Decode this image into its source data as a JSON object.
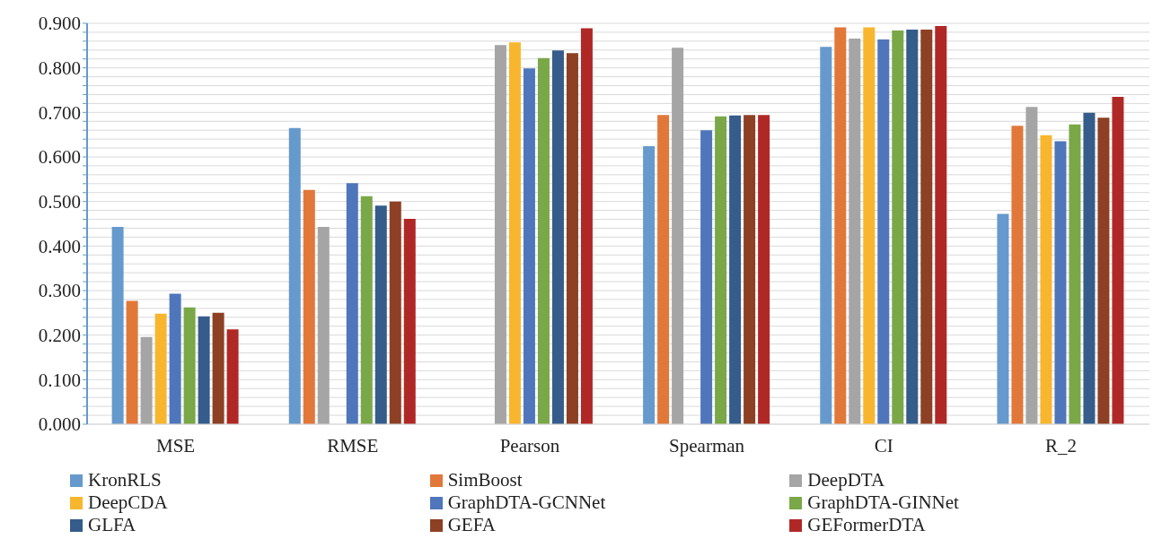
{
  "chart_data": {
    "type": "bar",
    "categories": [
      "MSE",
      "RMSE",
      "Pearson",
      "Spearman",
      "CI",
      "R_2"
    ],
    "series": [
      {
        "name": "KronRLS",
        "color": "#6699cc",
        "values": [
          0.443,
          0.665,
          null,
          0.624,
          0.847,
          0.472
        ]
      },
      {
        "name": "SimBoost",
        "color": "#e2773a",
        "values": [
          0.277,
          0.526,
          null,
          0.694,
          0.891,
          0.67
        ]
      },
      {
        "name": "DeepDTA",
        "color": "#a5a5a5",
        "values": [
          0.196,
          0.443,
          0.851,
          0.845,
          0.866,
          0.712
        ]
      },
      {
        "name": "DeepCDA",
        "color": "#f8b62f",
        "values": [
          0.248,
          null,
          0.857,
          null,
          0.891,
          0.649
        ]
      },
      {
        "name": "GraphDTA-GCNNet",
        "color": "#4f76bb",
        "values": [
          0.293,
          0.541,
          0.799,
          0.66,
          0.864,
          0.635
        ]
      },
      {
        "name": "GraphDTA-GINNet",
        "color": "#7aa747",
        "values": [
          0.262,
          0.512,
          0.822,
          0.691,
          0.884,
          0.673
        ]
      },
      {
        "name": "GLFA",
        "color": "#355c8a",
        "values": [
          0.242,
          0.491,
          0.839,
          0.693,
          0.886,
          0.699
        ]
      },
      {
        "name": "GEFA",
        "color": "#8d4023",
        "values": [
          0.25,
          0.5,
          0.833,
          0.694,
          0.886,
          0.688
        ]
      },
      {
        "name": "GEFormerDTA",
        "color": "#b02826",
        "values": [
          0.213,
          0.461,
          0.889,
          0.694,
          0.894,
          0.735
        ]
      }
    ],
    "ylim": [
      0,
      0.9
    ],
    "yticks": [
      {
        "value": 0,
        "label": "0.000"
      },
      {
        "value": 0.02,
        "label": null
      },
      {
        "value": 0.04,
        "label": null
      },
      {
        "value": 0.06,
        "label": null
      },
      {
        "value": 0.08,
        "label": null
      },
      {
        "value": 0.1,
        "label": "0.100"
      },
      {
        "value": 0.12,
        "label": null
      },
      {
        "value": 0.14,
        "label": null
      },
      {
        "value": 0.16,
        "label": null
      },
      {
        "value": 0.18,
        "label": null
      },
      {
        "value": 0.2,
        "label": "0.200"
      },
      {
        "value": 0.22,
        "label": null
      },
      {
        "value": 0.24,
        "label": null
      },
      {
        "value": 0.26,
        "label": null
      },
      {
        "value": 0.28,
        "label": null
      },
      {
        "value": 0.3,
        "label": "0.300"
      },
      {
        "value": 0.32,
        "label": null
      },
      {
        "value": 0.34,
        "label": null
      },
      {
        "value": 0.36,
        "label": null
      },
      {
        "value": 0.38,
        "label": null
      },
      {
        "value": 0.4,
        "label": "0.400"
      },
      {
        "value": 0.42,
        "label": null
      },
      {
        "value": 0.44,
        "label": null
      },
      {
        "value": 0.46,
        "label": null
      },
      {
        "value": 0.48,
        "label": null
      },
      {
        "value": 0.5,
        "label": "0.500"
      },
      {
        "value": 0.52,
        "label": null
      },
      {
        "value": 0.54,
        "label": null
      },
      {
        "value": 0.56,
        "label": null
      },
      {
        "value": 0.58,
        "label": null
      },
      {
        "value": 0.6,
        "label": "0.600"
      },
      {
        "value": 0.62,
        "label": null
      },
      {
        "value": 0.64,
        "label": null
      },
      {
        "value": 0.66,
        "label": null
      },
      {
        "value": 0.68,
        "label": null
      },
      {
        "value": 0.7,
        "label": "0.700"
      },
      {
        "value": 0.72,
        "label": null
      },
      {
        "value": 0.74,
        "label": null
      },
      {
        "value": 0.76,
        "label": null
      },
      {
        "value": 0.78,
        "label": null
      },
      {
        "value": 0.8,
        "label": "0.800"
      },
      {
        "value": 0.82,
        "label": null
      },
      {
        "value": 0.84,
        "label": null
      },
      {
        "value": 0.86,
        "label": null
      },
      {
        "value": 0.88,
        "label": null
      },
      {
        "value": 0.9,
        "label": "0.900"
      }
    ],
    "grid": "y",
    "legend": "bottom"
  }
}
